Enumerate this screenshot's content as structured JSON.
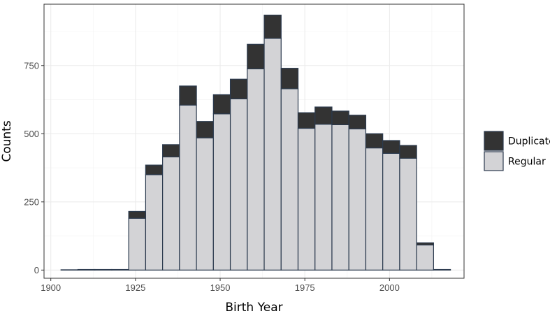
{
  "chart_data": {
    "type": "bar",
    "stacked": true,
    "histogram": true,
    "xlabel": "Birth Year",
    "ylabel": "Counts",
    "xlim": [
      1898,
      2022
    ],
    "ylim": [
      -30,
      975
    ],
    "x_ticks": [
      1900,
      1925,
      1950,
      1975,
      2000
    ],
    "y_ticks": [
      0,
      250,
      500,
      750
    ],
    "bin_width": 5,
    "grid": true,
    "legend_position": "right",
    "bins": [
      {
        "start": 1903,
        "end": 1908
      },
      {
        "start": 1908,
        "end": 1913
      },
      {
        "start": 1913,
        "end": 1918
      },
      {
        "start": 1918,
        "end": 1923
      },
      {
        "start": 1923,
        "end": 1928
      },
      {
        "start": 1928,
        "end": 1933
      },
      {
        "start": 1933,
        "end": 1938
      },
      {
        "start": 1938,
        "end": 1943
      },
      {
        "start": 1943,
        "end": 1948
      },
      {
        "start": 1948,
        "end": 1953
      },
      {
        "start": 1953,
        "end": 1958
      },
      {
        "start": 1958,
        "end": 1963
      },
      {
        "start": 1963,
        "end": 1968
      },
      {
        "start": 1968,
        "end": 1973
      },
      {
        "start": 1973,
        "end": 1978
      },
      {
        "start": 1978,
        "end": 1983
      },
      {
        "start": 1983,
        "end": 1988
      },
      {
        "start": 1988,
        "end": 1993
      },
      {
        "start": 1993,
        "end": 1998
      },
      {
        "start": 1998,
        "end": 2003
      },
      {
        "start": 2003,
        "end": 2008
      },
      {
        "start": 2008,
        "end": 2013
      },
      {
        "start": 2013,
        "end": 2018
      }
    ],
    "series": [
      {
        "name": "Regular",
        "color": "#d3d3d6",
        "values": [
          1,
          2,
          2,
          2,
          190,
          350,
          415,
          605,
          485,
          573,
          628,
          738,
          850,
          665,
          520,
          535,
          533,
          518,
          448,
          428,
          410,
          92,
          2
        ]
      },
      {
        "name": "Duplicate",
        "color": "#333333",
        "values": [
          0,
          0,
          0,
          0,
          25,
          35,
          45,
          70,
          60,
          70,
          72,
          90,
          85,
          75,
          57,
          63,
          50,
          50,
          52,
          47,
          47,
          8,
          0
        ]
      }
    ]
  },
  "legend": {
    "items": [
      {
        "label": "Duplicate",
        "color": "#333333"
      },
      {
        "label": "Regular",
        "color": "#d3d3d6"
      }
    ]
  }
}
